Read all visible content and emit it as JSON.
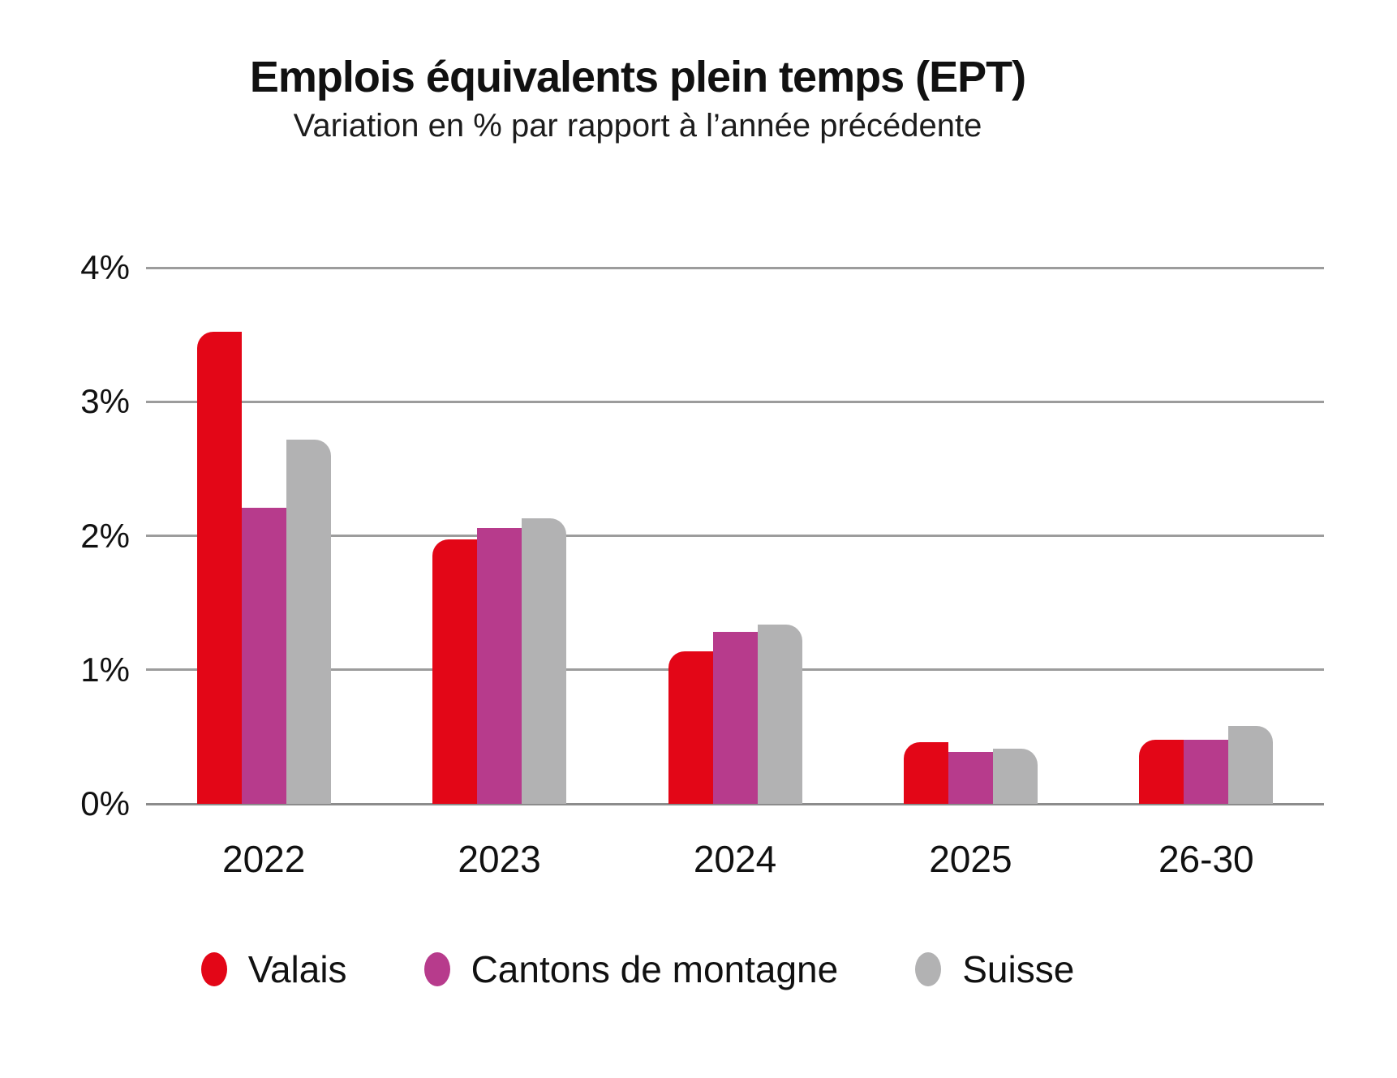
{
  "title": "Emplois équivalents plein temps (EPT)",
  "subtitle": "Variation en % par rapport à l’année précédente",
  "chart_data": {
    "type": "bar",
    "categories": [
      "2022",
      "2023",
      "2024",
      "2025",
      "26-30"
    ],
    "series": [
      {
        "name": "Valais",
        "color": "#e30617",
        "values": [
          3.52,
          1.97,
          1.14,
          0.46,
          0.48
        ]
      },
      {
        "name": "Cantons de montagne",
        "color": "#b73b8c",
        "values": [
          2.21,
          2.06,
          1.28,
          0.39,
          0.48
        ]
      },
      {
        "name": "Suisse",
        "color": "#b2b2b3",
        "values": [
          2.72,
          2.13,
          1.34,
          0.41,
          0.58
        ]
      }
    ],
    "title": "Emplois équivalents plein temps (EPT)",
    "subtitle": "Variation en % par rapport à l’année précédente",
    "xlabel": "",
    "ylabel": "",
    "ylim": [
      0,
      4
    ],
    "yticks": [
      "0%",
      "1%",
      "2%",
      "3%",
      "4%"
    ],
    "grid": true,
    "legend_position": "bottom",
    "gridline_color": "#9c9c9c",
    "axis_line_color": "#8c8c8c"
  }
}
